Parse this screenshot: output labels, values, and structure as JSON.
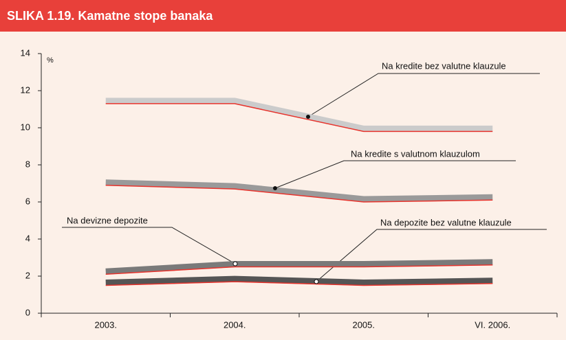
{
  "chart_data": {
    "type": "line",
    "title": "SLIKA 1.19. Kamatne stope banaka",
    "y_label": "%",
    "categories": [
      "2003.",
      "2004.",
      "2005.",
      "VI. 2006."
    ],
    "series": [
      {
        "name": "Na kredite bez valutne klauzule",
        "color": "#cbcbcb",
        "values": [
          11.3,
          11.3,
          9.8,
          9.8
        ]
      },
      {
        "name": "Na kredite s valutnom klauzulom",
        "color": "#9a9a9a",
        "values": [
          6.9,
          6.7,
          6.0,
          6.1
        ]
      },
      {
        "name": "Na devizne depozite",
        "color": "#7a7a7a",
        "values": [
          2.1,
          2.5,
          2.5,
          2.6
        ]
      },
      {
        "name": "Na depozite bez valutne klauzule",
        "color": "#555555",
        "values": [
          1.5,
          1.7,
          1.5,
          1.6
        ]
      }
    ],
    "line_color": "#e8332c",
    "ylim": [
      0,
      14
    ],
    "yticks": [
      0,
      2,
      4,
      6,
      8,
      10,
      12,
      14
    ]
  }
}
